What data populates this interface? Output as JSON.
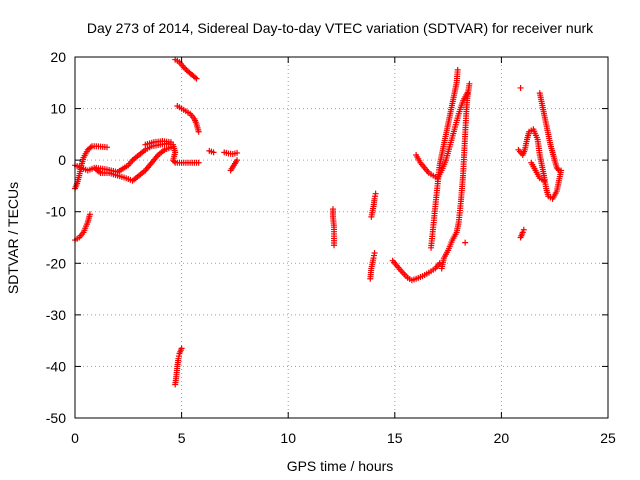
{
  "chart_data": {
    "type": "scatter",
    "title": "Day 273 of 2014, Sidereal Day-to-day VTEC variation (SDTVAR) for receiver nurk",
    "xlabel": "GPS time / hours",
    "ylabel": "SDTVAR / TECUs",
    "xlim": [
      0,
      25
    ],
    "ylim": [
      -50,
      20
    ],
    "xticks": [
      0,
      5,
      10,
      15,
      20,
      25
    ],
    "yticks": [
      -50,
      -40,
      -30,
      -20,
      -10,
      0,
      10,
      20
    ],
    "xtick_labels": [
      "0",
      "5",
      "10",
      "15",
      "20",
      "25"
    ],
    "ytick_labels": [
      "-50",
      "-40",
      "-30",
      "-20",
      "-10",
      "0",
      "10",
      "20"
    ],
    "grid": true,
    "marker": "plus",
    "color": "#ff0000",
    "segments": [
      {
        "points": [
          [
            0.0,
            -15.5
          ],
          [
            0.2,
            -15.0
          ],
          [
            0.4,
            -14.0
          ],
          [
            0.6,
            -12.0
          ],
          [
            0.7,
            -10.5
          ]
        ]
      },
      {
        "points": [
          [
            0.0,
            -5.5
          ],
          [
            0.1,
            -4.5
          ],
          [
            0.2,
            -3.0
          ],
          [
            0.3,
            -1.0
          ],
          [
            0.4,
            0.5
          ],
          [
            0.6,
            2.0
          ],
          [
            0.8,
            2.7
          ],
          [
            1.0,
            2.7
          ],
          [
            1.5,
            2.5
          ]
        ]
      },
      {
        "points": [
          [
            0.0,
            -1.0
          ],
          [
            0.3,
            -1.5
          ],
          [
            0.6,
            -2.0
          ],
          [
            0.9,
            -1.5
          ],
          [
            1.2,
            -2.5
          ],
          [
            1.6,
            -2.5
          ],
          [
            2.0,
            -3.0
          ],
          [
            2.4,
            -3.5
          ],
          [
            2.7,
            -4.0
          ],
          [
            3.0,
            -3.0
          ],
          [
            3.3,
            -2.0
          ],
          [
            3.6,
            -0.5
          ],
          [
            3.9,
            1.0
          ],
          [
            4.2,
            2.0
          ],
          [
            4.5,
            2.5
          ]
        ]
      },
      {
        "points": [
          [
            1.0,
            -1.5
          ],
          [
            1.5,
            -1.8
          ],
          [
            2.0,
            -2.3
          ],
          [
            2.5,
            -1.0
          ],
          [
            2.7,
            0.0
          ],
          [
            3.0,
            1.0
          ],
          [
            3.3,
            2.0
          ],
          [
            3.6,
            2.7
          ],
          [
            4.0,
            3.0
          ],
          [
            4.3,
            3.2
          ],
          [
            4.6,
            3.0
          ],
          [
            4.7,
            1.5
          ],
          [
            4.6,
            0.0
          ],
          [
            4.7,
            -0.5
          ]
        ]
      },
      {
        "points": [
          [
            3.3,
            3.0
          ],
          [
            3.7,
            3.5
          ],
          [
            4.1,
            3.7
          ],
          [
            4.5,
            3.5
          ]
        ]
      },
      {
        "points": [
          [
            4.7,
            19.5
          ],
          [
            4.9,
            19.0
          ],
          [
            5.1,
            18.0
          ],
          [
            5.3,
            17.2
          ],
          [
            5.5,
            16.5
          ],
          [
            5.7,
            15.8
          ]
        ]
      },
      {
        "points": [
          [
            4.8,
            10.5
          ],
          [
            5.0,
            10.0
          ],
          [
            5.2,
            9.5
          ],
          [
            5.4,
            9.0
          ],
          [
            5.6,
            8.0
          ],
          [
            5.7,
            7.0
          ],
          [
            5.8,
            5.5
          ]
        ]
      },
      {
        "points": [
          [
            4.8,
            -0.5
          ],
          [
            5.1,
            -0.5
          ],
          [
            5.4,
            -0.5
          ],
          [
            5.8,
            -0.5
          ]
        ]
      },
      {
        "points": [
          [
            4.7,
            -43.5
          ],
          [
            4.75,
            -42.0
          ],
          [
            4.8,
            -40.0
          ],
          [
            4.85,
            -38.5
          ],
          [
            4.9,
            -37.5
          ],
          [
            5.0,
            -36.5
          ]
        ]
      },
      {
        "points": [
          [
            6.3,
            1.8
          ],
          [
            6.5,
            1.5
          ]
        ]
      },
      {
        "points": [
          [
            7.0,
            1.5
          ],
          [
            7.2,
            1.3
          ],
          [
            7.4,
            1.2
          ],
          [
            7.6,
            1.4
          ]
        ]
      },
      {
        "points": [
          [
            7.3,
            -2.0
          ],
          [
            7.45,
            -1.0
          ],
          [
            7.6,
            0.0
          ]
        ]
      },
      {
        "points": [
          [
            12.1,
            -9.5
          ],
          [
            12.1,
            -11.0
          ],
          [
            12.15,
            -13.0
          ],
          [
            12.15,
            -16.5
          ]
        ]
      },
      {
        "points": [
          [
            13.85,
            -23.0
          ],
          [
            13.9,
            -21.0
          ],
          [
            14.0,
            -19.0
          ],
          [
            14.05,
            -18.0
          ]
        ]
      },
      {
        "points": [
          [
            13.9,
            -11.0
          ],
          [
            14.0,
            -9.0
          ],
          [
            14.05,
            -7.5
          ],
          [
            14.1,
            -6.5
          ]
        ]
      },
      {
        "points": [
          [
            14.9,
            -19.5
          ],
          [
            15.3,
            -21.5
          ],
          [
            15.6,
            -22.8
          ],
          [
            15.8,
            -23.3
          ],
          [
            16.0,
            -23.0
          ],
          [
            16.3,
            -22.5
          ],
          [
            16.6,
            -21.8
          ],
          [
            16.9,
            -21.0
          ],
          [
            17.1,
            -20.0
          ]
        ]
      },
      {
        "points": [
          [
            16.7,
            -17.0
          ],
          [
            16.8,
            -13.0
          ],
          [
            16.9,
            -9.0
          ],
          [
            17.0,
            -5.0
          ],
          [
            17.1,
            -1.0
          ],
          [
            17.2,
            1.0
          ],
          [
            17.3,
            3.0
          ],
          [
            17.4,
            5.0
          ],
          [
            17.5,
            7.0
          ],
          [
            17.6,
            9.0
          ],
          [
            17.7,
            11.0
          ],
          [
            17.8,
            13.0
          ],
          [
            17.9,
            15.0
          ],
          [
            17.95,
            17.5
          ]
        ]
      },
      {
        "points": [
          [
            17.2,
            -21.0
          ],
          [
            17.3,
            -19.0
          ],
          [
            17.5,
            -17.5
          ],
          [
            17.7,
            -15.5
          ],
          [
            17.9,
            -14.0
          ],
          [
            18.0,
            -12.0
          ],
          [
            18.1,
            -8.0
          ],
          [
            18.2,
            -3.0
          ],
          [
            18.25,
            1.0
          ],
          [
            18.3,
            5.0
          ],
          [
            18.35,
            9.0
          ],
          [
            18.4,
            12.0
          ],
          [
            18.5,
            14.8
          ]
        ]
      },
      {
        "points": [
          [
            16.0,
            1.0
          ],
          [
            16.2,
            -0.5
          ],
          [
            16.4,
            -1.5
          ],
          [
            16.6,
            -2.5
          ],
          [
            16.8,
            -3.0
          ],
          [
            17.0,
            -3.5
          ],
          [
            17.2,
            -2.0
          ],
          [
            17.4,
            0.0
          ],
          [
            17.6,
            3.0
          ],
          [
            17.8,
            6.0
          ],
          [
            18.0,
            9.0
          ],
          [
            18.2,
            11.5
          ],
          [
            18.4,
            13.0
          ]
        ]
      },
      {
        "points": [
          [
            18.3,
            -16.0
          ]
        ]
      },
      {
        "points": [
          [
            20.9,
            14.0
          ]
        ]
      },
      {
        "points": [
          [
            20.9,
            -15.0
          ],
          [
            21.0,
            -14.0
          ],
          [
            21.05,
            -13.5
          ]
        ]
      },
      {
        "points": [
          [
            20.8,
            2.0
          ],
          [
            21.0,
            1.0
          ],
          [
            21.1,
            2.0
          ],
          [
            21.2,
            4.0
          ],
          [
            21.3,
            5.5
          ],
          [
            21.5,
            6.0
          ],
          [
            21.7,
            4.0
          ],
          [
            21.8,
            1.0
          ],
          [
            21.9,
            -1.0
          ],
          [
            22.0,
            -3.0
          ],
          [
            22.1,
            -5.5
          ],
          [
            22.2,
            -7.0
          ],
          [
            22.4,
            -7.5
          ],
          [
            22.6,
            -6.0
          ],
          [
            22.7,
            -4.0
          ],
          [
            22.8,
            -2.0
          ]
        ]
      },
      {
        "points": [
          [
            21.8,
            13.0
          ],
          [
            21.9,
            11.0
          ],
          [
            22.0,
            9.0
          ],
          [
            22.1,
            7.0
          ],
          [
            22.2,
            5.0
          ],
          [
            22.3,
            3.0
          ],
          [
            22.4,
            1.5
          ],
          [
            22.5,
            0.0
          ],
          [
            22.6,
            -1.5
          ],
          [
            22.7,
            -2.0
          ]
        ]
      },
      {
        "points": [
          [
            21.4,
            -0.5
          ],
          [
            21.6,
            -2.0
          ],
          [
            21.8,
            -3.5
          ],
          [
            22.0,
            -4.0
          ]
        ]
      }
    ]
  }
}
